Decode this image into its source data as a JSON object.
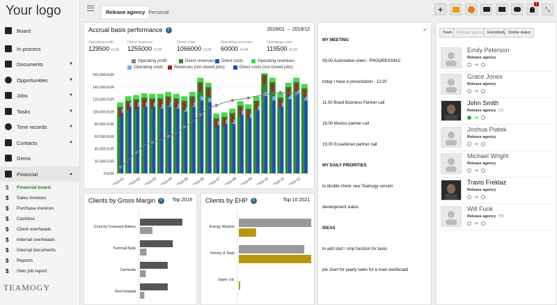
{
  "logo": "Your logo",
  "brand": "TEAMOGY",
  "nav": [
    {
      "label": "Board",
      "icon": "grid-icon",
      "chev": ""
    },
    {
      "label": "In process",
      "icon": "flow-icon",
      "chev": ""
    },
    {
      "label": "Documents",
      "icon": "folder-icon",
      "chev": "▼"
    },
    {
      "label": "Opportunities",
      "icon": "gear-icon",
      "chev": "▼"
    },
    {
      "label": "Jobs",
      "icon": "hammer-icon",
      "chev": "▼"
    },
    {
      "label": "Tasks",
      "icon": "list-icon",
      "chev": "▼"
    },
    {
      "label": "Time records",
      "icon": "clock-icon",
      "chev": "▼"
    },
    {
      "label": "Contacts",
      "icon": "contact-icon",
      "chev": "▼"
    },
    {
      "label": "Gems",
      "icon": "gem-icon",
      "chev": ""
    },
    {
      "label": "Financial",
      "icon": "dollar-icon",
      "chev": "▲"
    }
  ],
  "subnav": [
    "Financial board",
    "Sales invoices",
    "Purchase invoices",
    "Cashbox",
    "Client overheads",
    "Internal overheads",
    "Internal documents",
    "Reports",
    "Own job report"
  ],
  "tabs": [
    "Release agency",
    "Personal"
  ],
  "accrual": {
    "title": "Accrual basis performance",
    "range": "2019/01 → 2019/12",
    "kpis": [
      {
        "label": "Operating profit",
        "value": "129500",
        "unit": "EUR"
      },
      {
        "label": "Direct revenues",
        "value": "1255000",
        "unit": "EUR"
      },
      {
        "label": "Direct costs",
        "value": "1066000",
        "unit": "EUR"
      },
      {
        "label": "Operating revenues",
        "value": "60000",
        "unit": "EUR"
      },
      {
        "label": "Operating costs",
        "value": "119500",
        "unit": "EUR"
      }
    ],
    "legend1": [
      "Operating profit",
      "Direct revenues",
      "Direct costs",
      "Operating revenues"
    ],
    "legend2": [
      "Operating costs",
      "Revenues (not closed jobs)",
      "Direct costs (not closed jobs)"
    ],
    "colors": {
      "profit": "#888888",
      "rev": "#2e8b2e",
      "cost": "#1a4fb5",
      "oprev": "#4ad84a",
      "opcost": "#6fb0e8",
      "notclosed": "#a8221c"
    }
  },
  "chart_data": [
    {
      "type": "bar",
      "title": "Accrual basis performance",
      "ylim": [
        0,
        160000
      ],
      "yticks": [
        "0 EUR",
        "20,000 EUR",
        "40,000 EUR",
        "60,000 EUR",
        "80,000 EUR",
        "100,000 EUR",
        "120,000 EUR",
        "140,000 EUR",
        "160,000 EUR"
      ],
      "x": [
        "2019-01",
        "2019-01",
        "2019-02",
        "2019-02",
        "2019-03",
        "2019-03",
        "2019-04",
        "2019-04",
        "2019-05",
        "2019-05",
        "2019-06",
        "2019-06",
        "2019-07",
        "2019-07",
        "2019-08",
        "2019-08",
        "2019-09",
        "2019-09",
        "2019-10",
        "2019-10",
        "2019-11",
        "2019-11",
        "2019-12",
        "2019-12"
      ],
      "xlabels": [
        "2019-01",
        "2019-02",
        "2019-03",
        "2019-04",
        "2019-05",
        "2019-06",
        "2019-07",
        "2019-08",
        "2019-09",
        "2019-10",
        "2019-11",
        "2019-12"
      ],
      "series": [
        {
          "name": "Direct revenues",
          "values": [
            108000,
            118000,
            120000,
            123000,
            122000,
            122000,
            125000,
            122000,
            118000,
            125000,
            148000,
            140000,
            90000,
            92000,
            98000,
            110000,
            105000,
            118000,
            160000,
            148000,
            123000,
            140000,
            148000,
            138000
          ]
        },
        {
          "name": "Direct costs",
          "values": [
            98000,
            108000,
            108000,
            108000,
            108000,
            105000,
            108000,
            105000,
            100000,
            108000,
            118000,
            115000,
            78000,
            80000,
            80000,
            95000,
            90000,
            102000,
            125000,
            118000,
            108000,
            120000,
            128000,
            118000
          ]
        },
        {
          "name": "Operating profit",
          "values": [
            10000,
            21000,
            34000,
            46000,
            50000,
            54000,
            60000,
            65000,
            75000,
            83000,
            95000,
            105000,
            110000,
            115000,
            118000,
            120000,
            122000,
            125000,
            128000,
            129000,
            131000,
            130000,
            129000,
            129500
          ]
        }
      ]
    },
    {
      "type": "bar",
      "title": "Clients by Gross Margin",
      "categories": [
        "Crunchy Croissant Bakery",
        "Yummy&Tasty",
        "Carmedia",
        "Red Hospital"
      ],
      "series": [
        {
          "name": "",
          "values": [
            [
              58,
              17
            ],
            [
              45,
              9
            ],
            [
              38,
              8
            ],
            [
              38,
              6
            ]
          ]
        }
      ]
    },
    {
      "type": "bar",
      "title": "Clients by EHP",
      "categories": [
        "Energy Masters",
        "Yummy & Tasty",
        "Super Ltd."
      ],
      "series": [
        {
          "name": "",
          "values": [
            [
              105,
              25
            ],
            [
              95,
              105
            ],
            [
              0,
              2
            ]
          ]
        }
      ]
    }
  ],
  "margin": {
    "title": "Clients by Gross Margin",
    "period": "Top  2019"
  },
  "ehp": {
    "title": "Clients by EHP",
    "period": "Top 10 2021"
  },
  "notes": [
    "MY MEETING",
    "09.00 Automotive client - PROGRESSING",
    "today I have a presentation - 12.00",
    "11.00 Brazil Business Partner call",
    "16.00 Mexico partner call",
    "19.00 Ecuadorian partner call",
    "MY DAILY PRIORITIES",
    "to double check new Teamogy version",
    "development status",
    "IDEAS",
    "to add start / stop function  for tasks",
    "pie chart for yearly sales for a main dashboard"
  ],
  "team_tabs": [
    "Team",
    "Release agency",
    "Everybody",
    "Online status"
  ],
  "members": [
    {
      "name": "Emily Peterson",
      "agency": "Release agency",
      "code": "",
      "photo": false,
      "on": false
    },
    {
      "name": "Grace Jones",
      "agency": "Release agency",
      "code": "",
      "photo": false,
      "on": false
    },
    {
      "name": "John Smith",
      "agency": "Release agency",
      "code": "CD",
      "photo": true,
      "on": true
    },
    {
      "name": "Joshua Piatek",
      "agency": "Release agency",
      "code": "",
      "photo": false,
      "on": false
    },
    {
      "name": "Michael Wright",
      "agency": "Release agency",
      "code": "",
      "photo": false,
      "on": false
    },
    {
      "name": "Travis Freklaz",
      "agency": "Release agency",
      "code": "",
      "photo": true,
      "on": false
    },
    {
      "name": "Will Funk",
      "agency": "Release agency",
      "code": "TM",
      "photo": false,
      "on": false
    }
  ],
  "notif_count": "1"
}
